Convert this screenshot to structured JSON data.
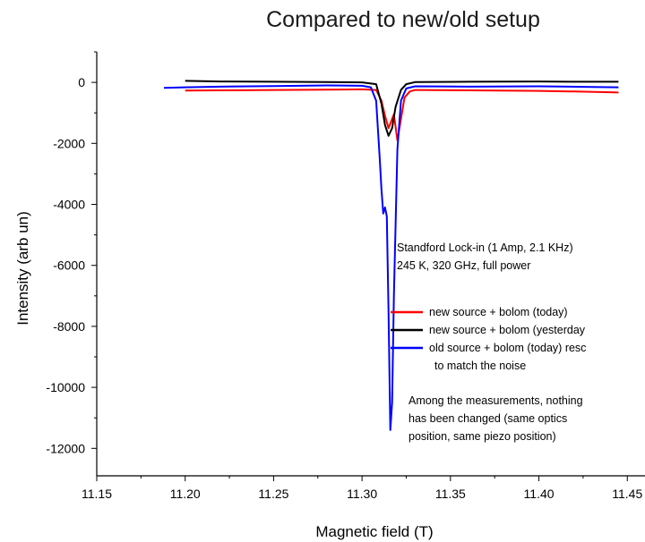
{
  "page_title": "Compared to new/old setup",
  "annotations": {
    "setup_line1": "Standford Lock-in (1 Amp, 2.1 KHz)",
    "setup_line2": "245 K, 320 GHz, full power",
    "note_line1": "Among the measurements, nothing",
    "note_line2": "has been changed (same optics",
    "note_line3": "position, same piezo position)"
  },
  "chart_data": {
    "type": "line",
    "title": "",
    "xlabel": "Magnetic field (T)",
    "ylabel": "Intensity (arb un)",
    "xlim": [
      11.15,
      11.46
    ],
    "ylim": [
      -12900,
      1000
    ],
    "x_ticks": [
      "11.15",
      "11.20",
      "11.25",
      "11.30",
      "11.35",
      "11.40",
      "11.45"
    ],
    "y_ticks": [
      "0",
      "-2000",
      "-4000",
      "-6000",
      "-8000",
      "-10000",
      "-12000"
    ],
    "legend_position": "right",
    "series": [
      {
        "name": "new source + bolom (today)",
        "color": "#ff0000",
        "points": [
          [
            11.2,
            -270
          ],
          [
            11.22,
            -260
          ],
          [
            11.25,
            -250
          ],
          [
            11.28,
            -240
          ],
          [
            11.3,
            -230
          ],
          [
            11.308,
            -250
          ],
          [
            11.311,
            -600
          ],
          [
            11.313,
            -1100
          ],
          [
            11.315,
            -1500
          ],
          [
            11.316,
            -1350
          ],
          [
            11.318,
            -1050
          ],
          [
            11.32,
            -1900
          ],
          [
            11.322,
            -1200
          ],
          [
            11.324,
            -500
          ],
          [
            11.327,
            -300
          ],
          [
            11.33,
            -250
          ],
          [
            11.36,
            -260
          ],
          [
            11.4,
            -280
          ],
          [
            11.42,
            -300
          ],
          [
            11.445,
            -330
          ]
        ]
      },
      {
        "name": "new source + bolom (yesterday)",
        "color": "#000000",
        "points": [
          [
            11.2,
            50
          ],
          [
            11.22,
            30
          ],
          [
            11.25,
            20
          ],
          [
            11.28,
            10
          ],
          [
            11.3,
            0
          ],
          [
            11.308,
            -60
          ],
          [
            11.311,
            -700
          ],
          [
            11.313,
            -1400
          ],
          [
            11.315,
            -1750
          ],
          [
            11.317,
            -1500
          ],
          [
            11.319,
            -800
          ],
          [
            11.322,
            -250
          ],
          [
            11.325,
            -60
          ],
          [
            11.33,
            10
          ],
          [
            11.36,
            20
          ],
          [
            11.4,
            30
          ],
          [
            11.42,
            20
          ],
          [
            11.445,
            20
          ]
        ]
      },
      {
        "name": "old source + bolom (today) resc to match the noise",
        "color": "#0000ff",
        "points": [
          [
            11.188,
            -180
          ],
          [
            11.2,
            -160
          ],
          [
            11.22,
            -140
          ],
          [
            11.25,
            -120
          ],
          [
            11.28,
            -100
          ],
          [
            11.3,
            -110
          ],
          [
            11.305,
            -160
          ],
          [
            11.308,
            -600
          ],
          [
            11.31,
            -2500
          ],
          [
            11.311,
            -3500
          ],
          [
            11.312,
            -4300
          ],
          [
            11.313,
            -4100
          ],
          [
            11.314,
            -4400
          ],
          [
            11.315,
            -7500
          ],
          [
            11.316,
            -11400
          ],
          [
            11.317,
            -10500
          ],
          [
            11.318,
            -7000
          ],
          [
            11.32,
            -2200
          ],
          [
            11.322,
            -600
          ],
          [
            11.325,
            -200
          ],
          [
            11.33,
            -130
          ],
          [
            11.36,
            -140
          ],
          [
            11.4,
            -130
          ],
          [
            11.43,
            -150
          ],
          [
            11.445,
            -160
          ]
        ]
      }
    ],
    "legend_labels": [
      "new source + bolom (today)",
      "new source + bolom (yesterday",
      "old source + bolom (today) resc",
      "to match the noise"
    ]
  }
}
